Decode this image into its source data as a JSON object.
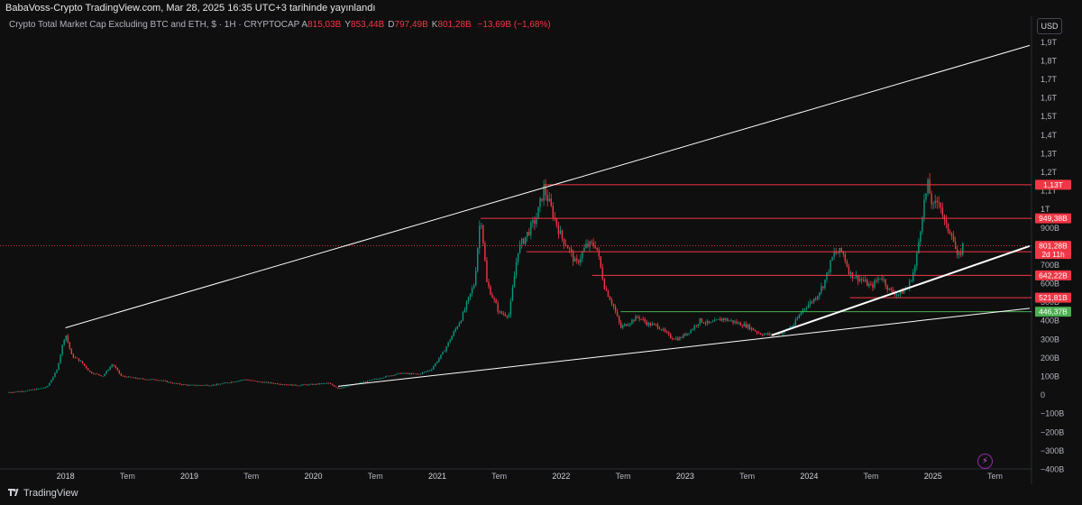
{
  "header": {
    "published_line": "BabaVoss-Crypto TradingView.com, Mar 28, 2025 16:35 UTC+3 tarihinde yayınlandı",
    "symbol_title": "Crypto Total Market Cap Excluding BTC and ETH, $ · 1H · CRYPTOCAP",
    "ohlc": [
      {
        "label": "A",
        "value": "815,03B"
      },
      {
        "label": "Y",
        "value": "853,44B"
      },
      {
        "label": "D",
        "value": "797,49B"
      },
      {
        "label": "K",
        "value": "801,28B"
      }
    ],
    "change": "−13,69B (−1,68%)"
  },
  "currency_button": "USD",
  "footer": {
    "brand": "TradingView"
  },
  "colors": {
    "background": "#0f0f0f",
    "up": "#089981",
    "down": "#f23645",
    "line": "#ffffff",
    "support": "#4caf50"
  },
  "chart_data": {
    "type": "candlestick",
    "y_ticks": [
      "1,9T",
      "1,8T",
      "1,7T",
      "1,6T",
      "1,5T",
      "1,4T",
      "1,3T",
      "1,2T",
      "1,1T",
      "1T",
      "900B",
      "800B",
      "700B",
      "600B",
      "500B",
      "400B",
      "300B",
      "200B",
      "100B",
      "0",
      "−100B",
      "−200B",
      "−300B",
      "−400B"
    ],
    "y_range": [
      -400,
      1950
    ],
    "y_unit": "B",
    "x_labels": [
      {
        "label": "2018",
        "t": 2018.0
      },
      {
        "label": "Tem",
        "t": 2018.5
      },
      {
        "label": "2019",
        "t": 2019.0
      },
      {
        "label": "Tem",
        "t": 2019.5
      },
      {
        "label": "2020",
        "t": 2020.0
      },
      {
        "label": "Tem",
        "t": 2020.5
      },
      {
        "label": "2021",
        "t": 2021.0
      },
      {
        "label": "Tem",
        "t": 2021.5
      },
      {
        "label": "2022",
        "t": 2022.0
      },
      {
        "label": "Tem",
        "t": 2022.5
      },
      {
        "label": "2023",
        "t": 2023.0
      },
      {
        "label": "Tem",
        "t": 2023.5
      },
      {
        "label": "2024",
        "t": 2024.0
      },
      {
        "label": "Tem",
        "t": 2024.5
      },
      {
        "label": "2025",
        "t": 2025.0
      },
      {
        "label": "Tem",
        "t": 2025.5
      }
    ],
    "x_range": [
      2017.53,
      2025.78
    ],
    "price_path": [
      [
        2017.53,
        12
      ],
      [
        2017.7,
        22
      ],
      [
        2017.85,
        40
      ],
      [
        2017.93,
        130
      ],
      [
        2017.98,
        280
      ],
      [
        2018.0,
        330
      ],
      [
        2018.05,
        210
      ],
      [
        2018.12,
        180
      ],
      [
        2018.2,
        120
      ],
      [
        2018.3,
        100
      ],
      [
        2018.38,
        165
      ],
      [
        2018.45,
        100
      ],
      [
        2018.6,
        85
      ],
      [
        2018.75,
        80
      ],
      [
        2018.88,
        60
      ],
      [
        2019.0,
        50
      ],
      [
        2019.2,
        52
      ],
      [
        2019.35,
        70
      ],
      [
        2019.45,
        82
      ],
      [
        2019.55,
        70
      ],
      [
        2019.7,
        60
      ],
      [
        2019.85,
        50
      ],
      [
        2020.0,
        55
      ],
      [
        2020.12,
        62
      ],
      [
        2020.2,
        35
      ],
      [
        2020.3,
        50
      ],
      [
        2020.45,
        75
      ],
      [
        2020.6,
        100
      ],
      [
        2020.7,
        115
      ],
      [
        2020.85,
        110
      ],
      [
        2020.95,
        135
      ],
      [
        2021.05,
        230
      ],
      [
        2021.2,
        420
      ],
      [
        2021.3,
        600
      ],
      [
        2021.35,
        980
      ],
      [
        2021.4,
        600
      ],
      [
        2021.5,
        440
      ],
      [
        2021.58,
        430
      ],
      [
        2021.65,
        780
      ],
      [
        2021.72,
        860
      ],
      [
        2021.8,
        950
      ],
      [
        2021.86,
        1110
      ],
      [
        2021.92,
        1000
      ],
      [
        2022.0,
        850
      ],
      [
        2022.05,
        800
      ],
      [
        2022.12,
        700
      ],
      [
        2022.2,
        800
      ],
      [
        2022.28,
        810
      ],
      [
        2022.35,
        580
      ],
      [
        2022.42,
        480
      ],
      [
        2022.48,
        360
      ],
      [
        2022.55,
        390
      ],
      [
        2022.62,
        420
      ],
      [
        2022.7,
        380
      ],
      [
        2022.78,
        370
      ],
      [
        2022.88,
        310
      ],
      [
        2022.95,
        300
      ],
      [
        2023.05,
        350
      ],
      [
        2023.12,
        400
      ],
      [
        2023.2,
        380
      ],
      [
        2023.3,
        410
      ],
      [
        2023.4,
        390
      ],
      [
        2023.5,
        370
      ],
      [
        2023.6,
        330
      ],
      [
        2023.7,
        320
      ],
      [
        2023.8,
        340
      ],
      [
        2023.88,
        380
      ],
      [
        2023.95,
        460
      ],
      [
        2024.05,
        520
      ],
      [
        2024.12,
        600
      ],
      [
        2024.2,
        760
      ],
      [
        2024.27,
        770
      ],
      [
        2024.33,
        650
      ],
      [
        2024.42,
        620
      ],
      [
        2024.5,
        580
      ],
      [
        2024.58,
        640
      ],
      [
        2024.65,
        560
      ],
      [
        2024.72,
        540
      ],
      [
        2024.8,
        580
      ],
      [
        2024.86,
        700
      ],
      [
        2024.92,
        1010
      ],
      [
        2024.96,
        1130
      ],
      [
        2025.0,
        1000
      ],
      [
        2025.05,
        1060
      ],
      [
        2025.1,
        900
      ],
      [
        2025.15,
        880
      ],
      [
        2025.2,
        720
      ],
      [
        2025.24,
        801
      ]
    ],
    "horizontal_levels": [
      {
        "value": 1130,
        "label": "1,13T",
        "color": "#f23645",
        "t_start": 2021.86
      },
      {
        "value": 949.38,
        "label": "949,38B",
        "color": "#f23645",
        "t_start": 2021.35
      },
      {
        "value": 769.7,
        "label": "769,7B",
        "color": "#f23645",
        "t_start": 2021.72
      },
      {
        "value": 642.22,
        "label": "642,22B",
        "color": "#f23645",
        "t_start": 2022.25
      },
      {
        "value": 521.81,
        "label": "521,81B",
        "color": "#f23645",
        "t_start": 2024.33
      },
      {
        "value": 446.37,
        "label": "446,37B",
        "color": "#4caf50",
        "t_start": 2022.48
      }
    ],
    "current_price": {
      "value": 801.28,
      "label": "801,28B",
      "countdown": "2d 11h"
    },
    "trend_lines": [
      {
        "from": [
          2018.0,
          360
        ],
        "to": [
          2025.78,
          1880
        ],
        "color": "#ffffff",
        "width": 1
      },
      {
        "from": [
          2020.2,
          45
        ],
        "to": [
          2025.78,
          465
        ],
        "color": "#ffffff",
        "width": 1
      },
      {
        "from": [
          2023.7,
          320
        ],
        "to": [
          2025.78,
          800
        ],
        "color": "#ffffff",
        "width": 2
      }
    ]
  }
}
